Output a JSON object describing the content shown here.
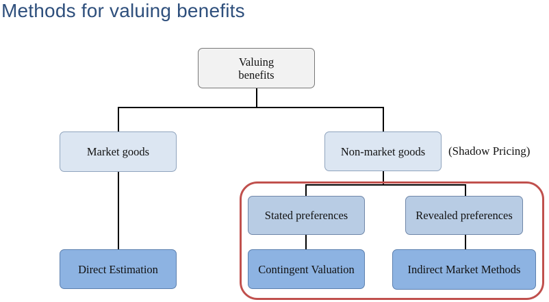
{
  "title": "Methods for valuing benefits",
  "nodes": {
    "root": "Valuing benefits",
    "market": "Market goods",
    "non_market": "Non-market goods",
    "direct": "Direct Estimation",
    "stated": "Stated preferences",
    "revealed": "Revealed preferences",
    "contingent": "Contingent Valuation",
    "indirect": "Indirect Market Methods"
  },
  "annotation": "(Shadow Pricing)",
  "colors": {
    "title": "#2e4f7c",
    "highlight_border": "#c0504d",
    "root_fill": "#f2f2f2",
    "level1_fill": "#dce6f2",
    "level2_fill": "#b8cce4",
    "level3_fill": "#8db3e2"
  }
}
